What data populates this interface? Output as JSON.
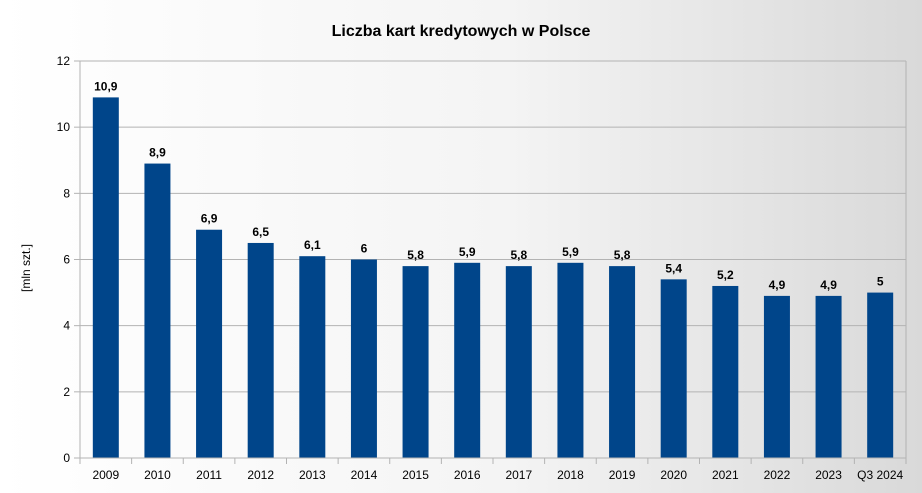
{
  "chart_data": {
    "type": "bar",
    "title": "Liczba kart kredytowych w Polsce",
    "xlabel": "",
    "ylabel": "[mln szt.]",
    "categories": [
      "2009",
      "2010",
      "2011",
      "2012",
      "2013",
      "2014",
      "2015",
      "2016",
      "2017",
      "2018",
      "2019",
      "2020",
      "2021",
      "2022",
      "2023",
      "Q3 2024"
    ],
    "values": [
      10.9,
      8.9,
      6.9,
      6.5,
      6.1,
      6.0,
      5.8,
      5.9,
      5.8,
      5.9,
      5.8,
      5.4,
      5.2,
      4.9,
      4.9,
      5.0
    ],
    "value_labels": [
      "10,9",
      "8,9",
      "6,9",
      "6,5",
      "6,1",
      "6",
      "5,8",
      "5,9",
      "5,8",
      "5,9",
      "5,8",
      "5,4",
      "5,2",
      "4,9",
      "4,9",
      "5"
    ],
    "ylim": [
      0,
      12
    ],
    "yticks": [
      0,
      2,
      4,
      6,
      8,
      10,
      12
    ],
    "grid": true,
    "bar_color": "#00458a",
    "grid_color": "#b3b3b3"
  }
}
